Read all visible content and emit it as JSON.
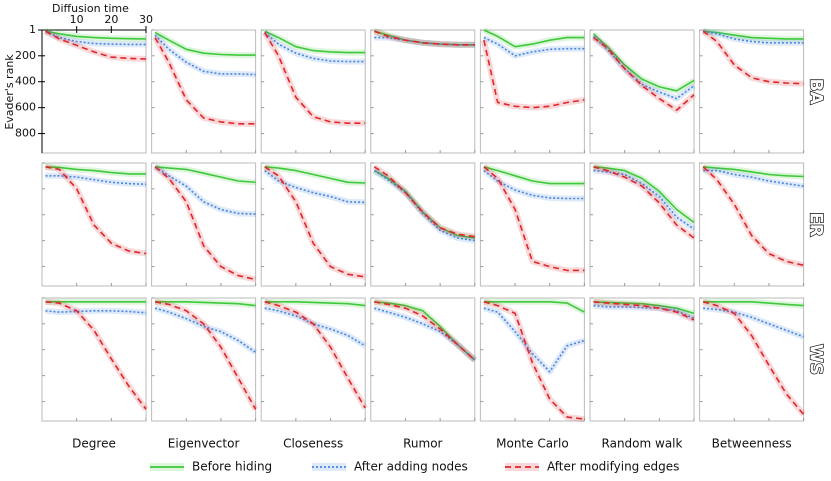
{
  "chart_data": {
    "type": "line",
    "xlabel": "Diffusion time",
    "ylabel": "Evader's rank",
    "x": [
      1,
      5,
      10,
      15,
      20,
      25,
      30
    ],
    "xlim": [
      0,
      30
    ],
    "xticks": [
      10,
      20,
      30
    ],
    "ylim": [
      1,
      950
    ],
    "yticks": [
      1,
      200,
      400,
      600,
      800
    ],
    "y_inverted": true,
    "columns": [
      "Degree",
      "Eigenvector",
      "Closeness",
      "Rumor",
      "Monte Carlo",
      "Random walk",
      "Betweenness"
    ],
    "rows": [
      "BA",
      "ER",
      "WS"
    ],
    "series": [
      {
        "name": "Before hiding",
        "color": "#3ec93a",
        "dash": "solid"
      },
      {
        "name": "After adding nodes",
        "color": "#4a86e0",
        "dash": "dotted"
      },
      {
        "name": "After modifying edges",
        "color": "#e0262a",
        "dash": "dashed"
      }
    ],
    "panels": [
      [
        {
          "values": [
            [
              10,
              30,
              50,
              60,
              65,
              68,
              70
            ],
            [
              10,
              60,
              90,
              105,
              110,
              112,
              112
            ],
            [
              10,
              70,
              120,
              170,
              210,
              220,
              225
            ]
          ]
        },
        {
          "values": [
            [
              20,
              80,
              150,
              180,
              190,
              195,
              195
            ],
            [
              40,
              150,
              250,
              320,
              340,
              340,
              345
            ],
            [
              60,
              250,
              540,
              680,
              710,
              725,
              725
            ]
          ]
        },
        {
          "values": [
            [
              10,
              60,
              130,
              160,
              170,
              175,
              175
            ],
            [
              20,
              110,
              180,
              220,
              240,
              245,
              245
            ],
            [
              20,
              200,
              520,
              670,
              710,
              720,
              720
            ]
          ]
        },
        {
          "values": [
            [
              10,
              40,
              80,
              100,
              110,
              115,
              115
            ],
            [
              60,
              60,
              80,
              100,
              110,
              115,
              115
            ],
            [
              10,
              50,
              80,
              100,
              110,
              115,
              115
            ]
          ]
        },
        {
          "values": [
            [
              1,
              50,
              130,
              110,
              80,
              60,
              60
            ],
            [
              60,
              110,
              200,
              170,
              150,
              145,
              145
            ],
            [
              80,
              560,
              590,
              600,
              590,
              560,
              540
            ]
          ]
        },
        {
          "values": [
            [
              30,
              130,
              270,
              380,
              440,
              470,
              390
            ],
            [
              50,
              150,
              300,
              420,
              480,
              530,
              430
            ],
            [
              60,
              140,
              300,
              430,
              530,
              620,
              500
            ]
          ]
        },
        {
          "values": [
            [
              10,
              20,
              40,
              60,
              65,
              70,
              70
            ],
            [
              10,
              30,
              70,
              90,
              100,
              100,
              100
            ],
            [
              10,
              90,
              270,
              370,
              400,
              410,
              415
            ]
          ]
        }
      ],
      [
        {
          "values": [
            [
              30,
              35,
              50,
              60,
              75,
              85,
              85
            ],
            [
              100,
              100,
              110,
              130,
              150,
              160,
              165
            ],
            [
              30,
              50,
              200,
              480,
              620,
              680,
              700
            ]
          ]
        },
        {
          "values": [
            [
              30,
              40,
              50,
              80,
              110,
              140,
              150
            ],
            [
              30,
              100,
              180,
              300,
              360,
              390,
              395
            ],
            [
              30,
              120,
              300,
              640,
              800,
              870,
              900
            ]
          ]
        },
        {
          "values": [
            [
              30,
              40,
              60,
              90,
              120,
              150,
              155
            ],
            [
              60,
              140,
              190,
              230,
              260,
              300,
              305
            ],
            [
              30,
              100,
              300,
              620,
              800,
              860,
              880
            ]
          ]
        },
        {
          "values": [
            [
              60,
              120,
              220,
              380,
              500,
              560,
              580
            ],
            [
              60,
              130,
              230,
              390,
              520,
              580,
              600
            ],
            [
              30,
              100,
              230,
              380,
              500,
              550,
              570
            ]
          ]
        },
        {
          "values": [
            [
              30,
              60,
              100,
              140,
              160,
              160,
              160
            ],
            [
              60,
              140,
              210,
              250,
              270,
              275,
              275
            ],
            [
              30,
              120,
              360,
              760,
              800,
              830,
              830
            ]
          ]
        },
        {
          "values": [
            [
              30,
              40,
              60,
              120,
              220,
              360,
              460
            ],
            [
              60,
              70,
              90,
              160,
              260,
              420,
              510
            ],
            [
              30,
              60,
              110,
              180,
              310,
              480,
              580
            ]
          ]
        },
        {
          "values": [
            [
              30,
              40,
              50,
              70,
              90,
              100,
              105
            ],
            [
              60,
              60,
              90,
              110,
              140,
              160,
              180
            ],
            [
              30,
              130,
              320,
              560,
              700,
              760,
              790
            ]
          ]
        }
      ],
      [
        {
          "values": [
            [
              30,
              30,
              30,
              30,
              30,
              30,
              30
            ],
            [
              100,
              110,
              105,
              100,
              100,
              105,
              115
            ],
            [
              30,
              40,
              100,
              250,
              470,
              680,
              860
            ]
          ]
        },
        {
          "values": [
            [
              30,
              30,
              30,
              35,
              40,
              45,
              60
            ],
            [
              80,
              110,
              160,
              220,
              260,
              330,
              420
            ],
            [
              30,
              50,
              100,
              200,
              380,
              620,
              860
            ]
          ]
        },
        {
          "values": [
            [
              30,
              30,
              30,
              35,
              40,
              45,
              60
            ],
            [
              80,
              100,
              140,
              200,
              240,
              290,
              370
            ],
            [
              30,
              60,
              110,
              200,
              380,
              620,
              850
            ]
          ]
        },
        {
          "values": [
            [
              30,
              40,
              60,
              100,
              220,
              360,
              480
            ],
            [
              80,
              110,
              150,
              200,
              260,
              360,
              480
            ],
            [
              30,
              50,
              80,
              140,
              240,
              360,
              480
            ]
          ]
        },
        {
          "values": [
            [
              30,
              30,
              30,
              30,
              30,
              40,
              110
            ],
            [
              80,
              110,
              260,
              430,
              570,
              370,
              330
            ],
            [
              30,
              60,
              120,
              500,
              780,
              920,
              935
            ]
          ]
        },
        {
          "values": [
            [
              30,
              35,
              40,
              45,
              60,
              80,
              120
            ],
            [
              60,
              70,
              70,
              75,
              80,
              100,
              160
            ],
            [
              30,
              40,
              50,
              60,
              80,
              110,
              170
            ]
          ]
        },
        {
          "values": [
            [
              30,
              30,
              30,
              30,
              40,
              50,
              60
            ],
            [
              80,
              90,
              110,
              150,
              200,
              250,
              300
            ],
            [
              30,
              60,
              120,
              290,
              520,
              740,
              900
            ]
          ]
        }
      ]
    ]
  }
}
